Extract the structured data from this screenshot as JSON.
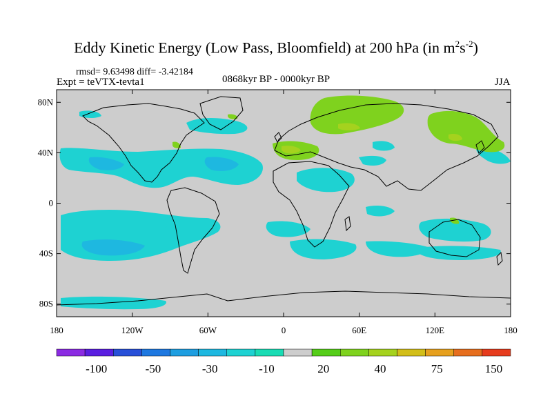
{
  "title": {
    "main": "Eddy Kinetic Energy (Low Pass, Bloomfield) at 200 hPa (in m",
    "exp1": "2",
    "mid": "s",
    "exp2": "-2",
    "close": ")"
  },
  "stats": "rmsd= 9.63498 diff= -3.42184",
  "experiment": "Expt = teVTX-tevta1",
  "period": "0868kyr BP - 0000kyr BP",
  "season": "JJA",
  "axes": {
    "lat_ticks": [
      {
        "label": "80N",
        "lat": 80
      },
      {
        "label": "40N",
        "lat": 40
      },
      {
        "label": "0",
        "lat": 0
      },
      {
        "label": "40S",
        "lat": -40
      },
      {
        "label": "80S",
        "lat": -80
      }
    ],
    "lon_ticks": [
      {
        "label": "180",
        "lon": -180
      },
      {
        "label": "120W",
        "lon": -120
      },
      {
        "label": "60W",
        "lon": -60
      },
      {
        "label": "0",
        "lon": 0
      },
      {
        "label": "60E",
        "lon": 60
      },
      {
        "label": "120E",
        "lon": 120
      },
      {
        "label": "180",
        "lon": 180
      }
    ],
    "lon_range": [
      -180,
      180
    ],
    "lat_range": [
      -90,
      90
    ]
  },
  "colorbar": {
    "colors": [
      "#8b2be2",
      "#5a1ee0",
      "#2850d8",
      "#1e78e0",
      "#1e9ee0",
      "#1eb8e0",
      "#1ed2d2",
      "#19dcb4",
      "#cdcdcd",
      "#55cd19",
      "#7fd21e",
      "#a5d21e",
      "#d2be19",
      "#e6a01e",
      "#e66e1e",
      "#e63c1e"
    ],
    "labels": [
      {
        "text": "-100",
        "boundary": 2
      },
      {
        "text": "-50",
        "boundary": 4
      },
      {
        "text": "-30",
        "boundary": 6
      },
      {
        "text": "-10",
        "boundary": 8
      },
      {
        "text": "20",
        "boundary": 10
      },
      {
        "text": "40",
        "boundary": 12
      },
      {
        "text": "75",
        "boundary": 14
      },
      {
        "text": "150",
        "boundary": 16
      }
    ]
  },
  "colors": {
    "neutral": "#cdcdcd",
    "negative_light": "#1ed2d2",
    "negative_mid": "#1eb8e0",
    "positive_light": "#7fd21e",
    "positive_mid": "#a5d21e"
  }
}
